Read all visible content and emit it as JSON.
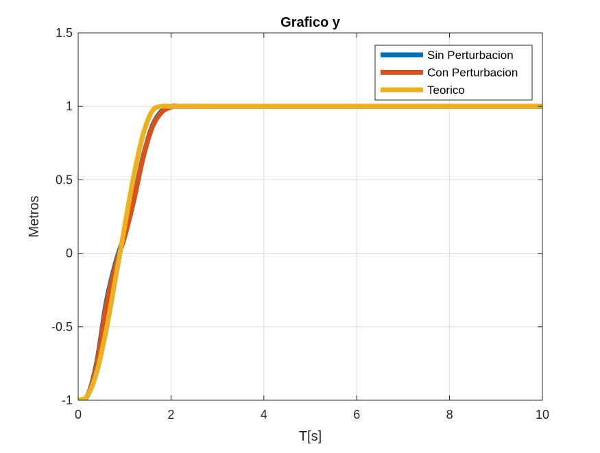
{
  "chart_data": {
    "type": "line",
    "title": "Grafico y",
    "xlabel": "T[s]",
    "ylabel": "Metros",
    "xlim": [
      0,
      10
    ],
    "ylim": [
      -1,
      1.5
    ],
    "xticks": [
      0,
      2,
      4,
      6,
      8,
      10
    ],
    "xtick_labels": [
      "0",
      "2",
      "4",
      "6",
      "8",
      "10"
    ],
    "yticks": [
      -1,
      -0.5,
      0,
      0.5,
      1,
      1.5
    ],
    "ytick_labels": [
      "-1",
      "-0.5",
      "0",
      "0.5",
      "1",
      "1.5"
    ],
    "grid": true,
    "legend_position": "top-right",
    "series": [
      {
        "name": "Sin Perturbacion",
        "color": "#0072BD",
        "x": [
          0,
          0.2,
          0.4,
          0.6,
          0.8,
          1.0,
          1.2,
          1.4,
          1.6,
          1.8,
          2.0,
          2.2,
          2.6,
          3,
          4,
          5,
          6,
          7,
          8,
          9,
          10
        ],
        "y": [
          -1.0,
          -0.97,
          -0.74,
          -0.34,
          -0.07,
          0.13,
          0.37,
          0.66,
          0.87,
          0.97,
          1.0,
          1.0,
          1.0,
          1.0,
          1.0,
          1.0,
          1.0,
          1.0,
          1.0,
          1.0,
          1.0
        ]
      },
      {
        "name": "Con Perturbacion",
        "color": "#D95319",
        "x": [
          0,
          0.2,
          0.4,
          0.6,
          0.8,
          1.0,
          1.2,
          1.4,
          1.6,
          1.8,
          2.0,
          2.2,
          2.6,
          3,
          4,
          5,
          6,
          7,
          8,
          9,
          10
        ],
        "y": [
          -1.0,
          -0.97,
          -0.76,
          -0.37,
          -0.09,
          0.11,
          0.36,
          0.65,
          0.86,
          0.96,
          0.995,
          1.0,
          1.0,
          1.0,
          1.0,
          1.0,
          1.0,
          1.0,
          1.0,
          1.0,
          1.0
        ]
      },
      {
        "name": "Teorico",
        "color": "#EDB120",
        "x": [
          0,
          0.2,
          0.4,
          0.6,
          0.8,
          1.0,
          1.2,
          1.4,
          1.6,
          1.8,
          2.0,
          2.2,
          2.6,
          3,
          4,
          5,
          6,
          7,
          8,
          9,
          10
        ],
        "y": [
          -1.0,
          -0.97,
          -0.81,
          -0.53,
          -0.18,
          0.18,
          0.53,
          0.81,
          0.97,
          1.0,
          1.0,
          1.0,
          1.0,
          1.0,
          1.0,
          1.0,
          1.0,
          1.0,
          1.0,
          1.0,
          1.0
        ]
      }
    ]
  }
}
